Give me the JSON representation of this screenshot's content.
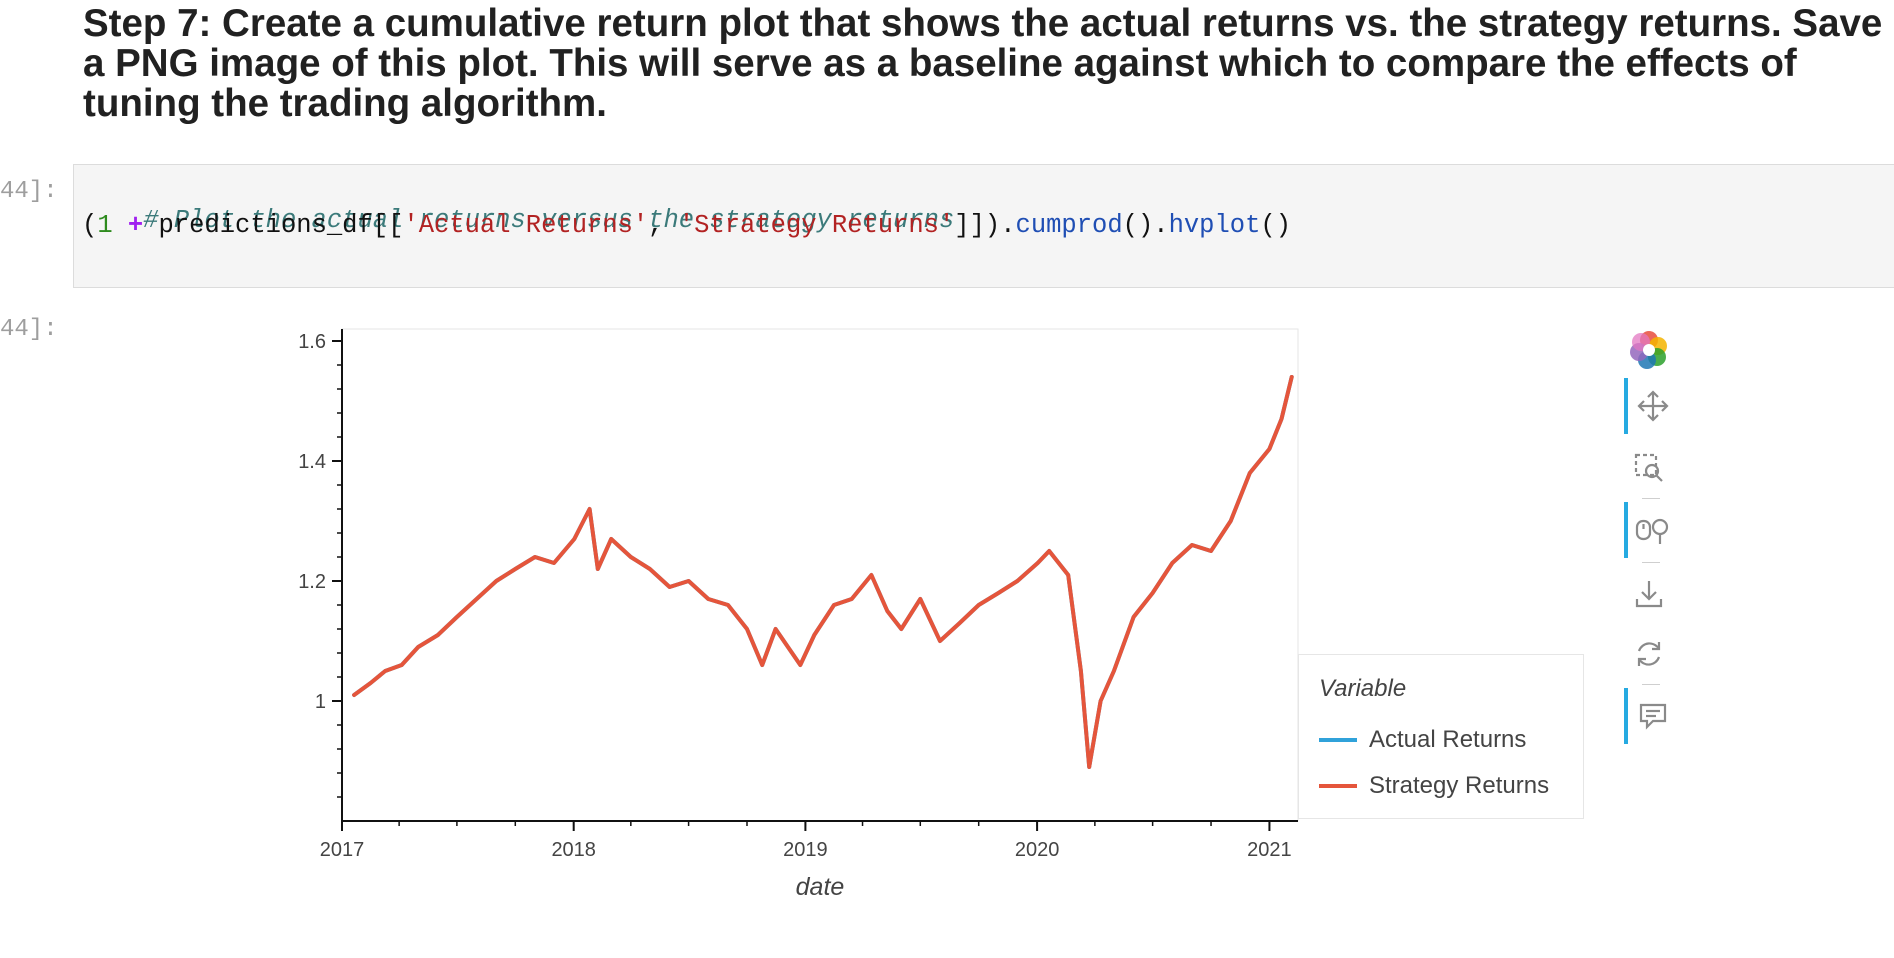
{
  "heading": {
    "line1": "Step 7: Create a cumulative return plot that shows the actual returns vs. the strategy returns. Save",
    "line2": "a PNG image of this plot. This will serve as a baseline against which to compare the effects of",
    "line3": "tuning the trading algorithm."
  },
  "cells": {
    "input_prompt": "44]:",
    "output_prompt": "44]:",
    "code": {
      "comment": "# Plot the actual returns versus the strategy returns",
      "t1": "(",
      "t2": "1",
      "t3": " + ",
      "t4": "predictions_df[[",
      "t5": "'Actual Returns'",
      "t6": ", ",
      "t7": "'Strategy Returns'",
      "t8": "]]).",
      "t9": "cumprod",
      "t10": "().",
      "t11": "hvplot",
      "t12": "()"
    }
  },
  "legend": {
    "title": "Variable",
    "items": [
      "Actual Returns",
      "Strategy Returns"
    ]
  },
  "toolbar": {
    "tools": [
      "bokeh-logo-icon",
      "pan-icon",
      "box-zoom-icon",
      "wheel-zoom-icon",
      "save-icon",
      "reset-icon",
      "hover-icon"
    ]
  },
  "colors": {
    "actual": "#30a2da",
    "strategy": "#e5553b"
  },
  "chart_data": {
    "type": "line",
    "title": "",
    "xlabel": "date",
    "ylabel": "",
    "ylim": [
      0.8,
      1.62
    ],
    "xlim": [
      "2017-01-01",
      "2021-02-15"
    ],
    "yticks": [
      "1",
      "1.2",
      "1.4",
      "1.6"
    ],
    "yticks_values": [
      1.0,
      1.2,
      1.4,
      1.6
    ],
    "xticks": [
      "2017",
      "2018",
      "2019",
      "2020",
      "2021"
    ],
    "grid": false,
    "legend_position": "right",
    "series": [
      {
        "name": "Actual Returns",
        "color": "#30a2da",
        "x": [
          "2017-01-20",
          "2017-02-15",
          "2017-03-10",
          "2017-04-05",
          "2017-05-01",
          "2017-06-01",
          "2017-07-01",
          "2017-08-01",
          "2017-09-01",
          "2017-10-01",
          "2017-11-01",
          "2017-12-01",
          "2018-01-02",
          "2018-01-26",
          "2018-02-08",
          "2018-03-01",
          "2018-04-01",
          "2018-05-01",
          "2018-06-01",
          "2018-07-01",
          "2018-08-01",
          "2018-09-01",
          "2018-10-01",
          "2018-10-25",
          "2018-11-15",
          "2018-12-24",
          "2019-01-15",
          "2019-02-15",
          "2019-03-15",
          "2019-04-15",
          "2019-05-10",
          "2019-06-01",
          "2019-07-01",
          "2019-08-01",
          "2019-09-01",
          "2019-10-01",
          "2019-11-01",
          "2019-12-01",
          "2020-01-02",
          "2020-01-20",
          "2020-02-19",
          "2020-03-10",
          "2020-03-23",
          "2020-04-10",
          "2020-05-01",
          "2020-06-01",
          "2020-07-01",
          "2020-08-01",
          "2020-09-01",
          "2020-10-01",
          "2020-11-01",
          "2020-12-01",
          "2021-01-01",
          "2021-01-20",
          "2021-02-05"
        ],
        "y": [
          1.01,
          1.03,
          1.05,
          1.06,
          1.09,
          1.11,
          1.14,
          1.17,
          1.2,
          1.22,
          1.24,
          1.23,
          1.27,
          1.32,
          1.22,
          1.27,
          1.24,
          1.22,
          1.19,
          1.2,
          1.17,
          1.16,
          1.12,
          1.06,
          1.12,
          1.06,
          1.11,
          1.16,
          1.17,
          1.21,
          1.15,
          1.12,
          1.17,
          1.1,
          1.13,
          1.16,
          1.18,
          1.2,
          1.23,
          1.25,
          1.21,
          1.05,
          0.89,
          1.0,
          1.05,
          1.14,
          1.18,
          1.23,
          1.26,
          1.25,
          1.3,
          1.38,
          1.42,
          1.47,
          1.54
        ]
      },
      {
        "name": "Strategy Returns",
        "color": "#e5553b",
        "x": [
          "2017-01-20",
          "2017-02-15",
          "2017-03-10",
          "2017-04-05",
          "2017-05-01",
          "2017-06-01",
          "2017-07-01",
          "2017-08-01",
          "2017-09-01",
          "2017-10-01",
          "2017-11-01",
          "2017-12-01",
          "2018-01-02",
          "2018-01-26",
          "2018-02-08",
          "2018-03-01",
          "2018-04-01",
          "2018-05-01",
          "2018-06-01",
          "2018-07-01",
          "2018-08-01",
          "2018-09-01",
          "2018-10-01",
          "2018-10-25",
          "2018-11-15",
          "2018-12-24",
          "2019-01-15",
          "2019-02-15",
          "2019-03-15",
          "2019-04-15",
          "2019-05-10",
          "2019-06-01",
          "2019-07-01",
          "2019-08-01",
          "2019-09-01",
          "2019-10-01",
          "2019-11-01",
          "2019-12-01",
          "2020-01-02",
          "2020-01-20",
          "2020-02-19",
          "2020-03-10",
          "2020-03-23",
          "2020-04-10",
          "2020-05-01",
          "2020-06-01",
          "2020-07-01",
          "2020-08-01",
          "2020-09-01",
          "2020-10-01",
          "2020-11-01",
          "2020-12-01",
          "2021-01-01",
          "2021-01-20",
          "2021-02-05"
        ],
        "y": [
          1.01,
          1.03,
          1.05,
          1.06,
          1.09,
          1.11,
          1.14,
          1.17,
          1.2,
          1.22,
          1.24,
          1.23,
          1.27,
          1.32,
          1.22,
          1.27,
          1.24,
          1.22,
          1.19,
          1.2,
          1.17,
          1.16,
          1.12,
          1.06,
          1.12,
          1.06,
          1.11,
          1.16,
          1.17,
          1.21,
          1.15,
          1.12,
          1.17,
          1.1,
          1.13,
          1.16,
          1.18,
          1.2,
          1.23,
          1.25,
          1.21,
          1.05,
          0.89,
          1.0,
          1.05,
          1.14,
          1.18,
          1.23,
          1.26,
          1.25,
          1.3,
          1.38,
          1.42,
          1.47,
          1.54
        ]
      }
    ]
  }
}
